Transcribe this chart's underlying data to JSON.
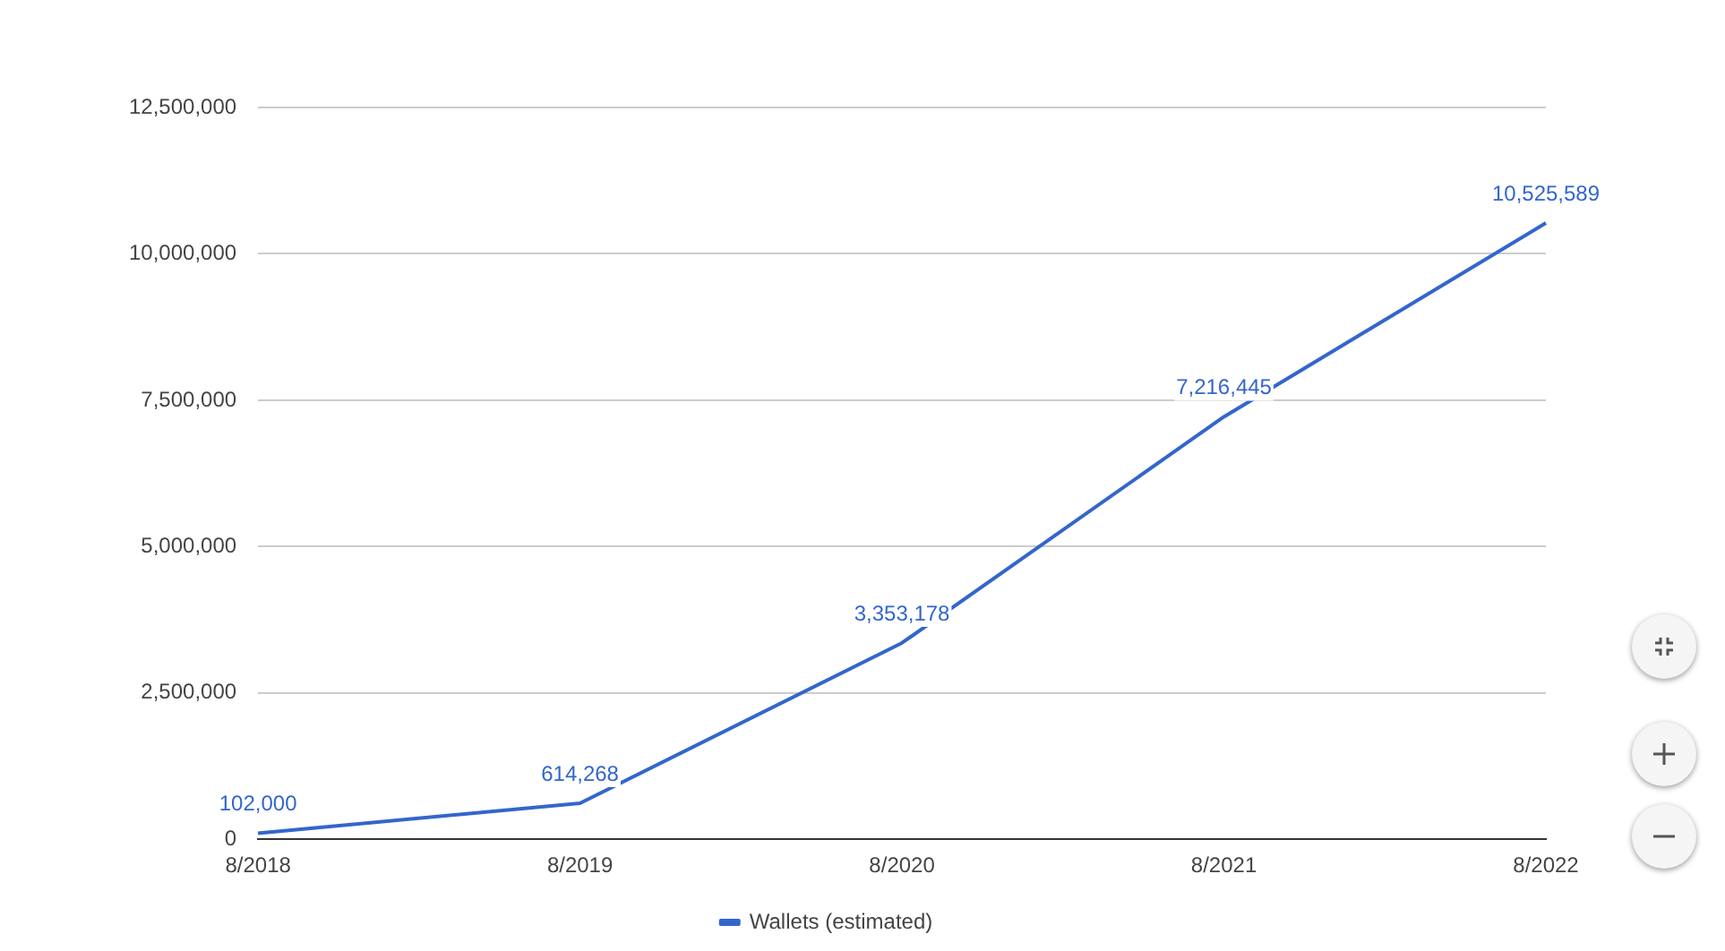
{
  "chart_data": {
    "type": "line",
    "categories": [
      "8/2018",
      "8/2019",
      "8/2020",
      "8/2021",
      "8/2022"
    ],
    "series": [
      {
        "name": "Wallets (estimated)",
        "color": "#3366cc",
        "values": [
          102000,
          614268,
          3353178,
          7216445,
          10525589
        ],
        "value_labels": [
          "102,000",
          "614,268",
          "3,353,178",
          "7,216,445",
          "10,525,589"
        ]
      }
    ],
    "ylim": [
      0,
      12500000
    ],
    "yticks": [
      0,
      {
        "value": 2500000,
        "label": "2,500,000"
      },
      {
        "value": 5000000,
        "label": "5,000,000"
      },
      {
        "value": 7500000,
        "label": "7,500,000"
      },
      {
        "value": 10000000,
        "label": "10,000,000"
      },
      {
        "value": 12500000,
        "label": "12,500,000"
      }
    ],
    "grid": "y",
    "legend": "bottom",
    "marker": "none",
    "line_style": "solid"
  }
}
